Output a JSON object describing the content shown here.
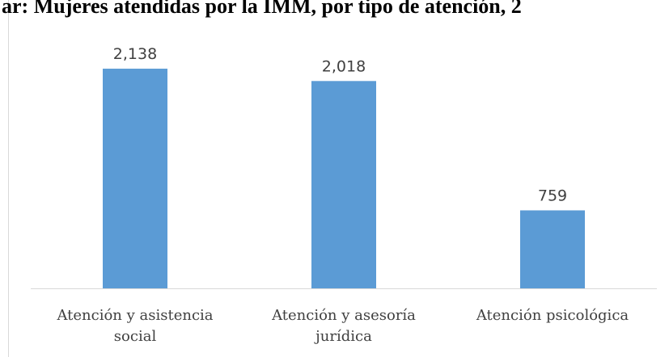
{
  "chart_data": {
    "type": "bar",
    "title": "ar: Mujeres atendidas por la IMM, por tipo de atención, 2",
    "categories": [
      "Atención y asistencia social",
      "Atención y asesoría jurídica",
      "Atención psicológica"
    ],
    "values": [
      2138,
      2018,
      759
    ],
    "value_labels": [
      "2,138",
      "2,018",
      "759"
    ],
    "color": "#5b9bd5",
    "ylim": [
      0,
      2500
    ]
  }
}
